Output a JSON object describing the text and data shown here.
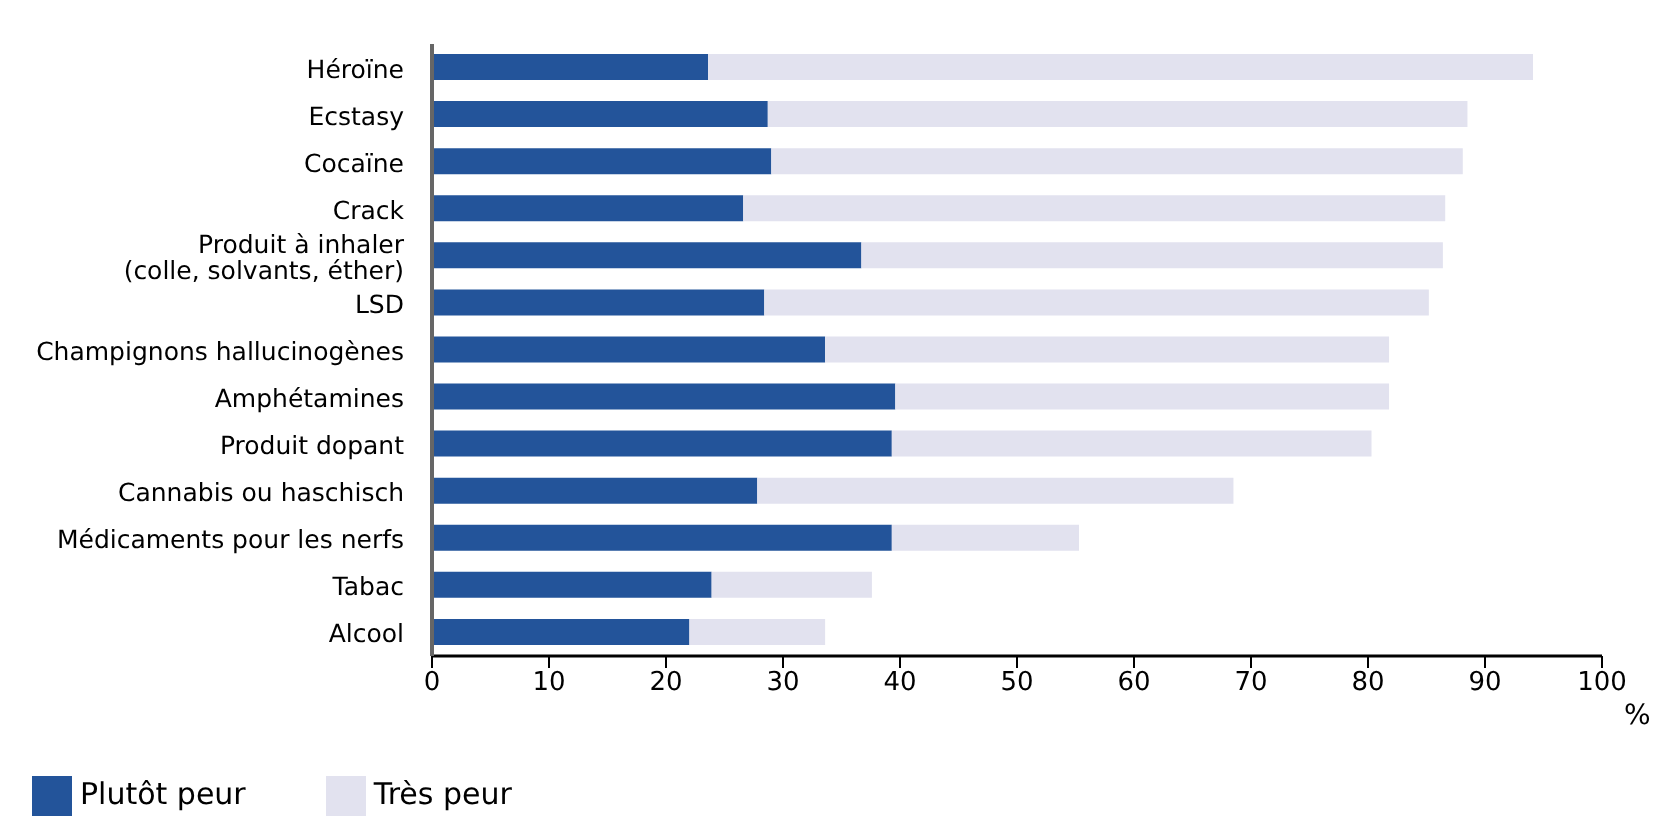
{
  "chart_data": {
    "type": "bar",
    "orientation": "horizontal",
    "stacked": true,
    "xlabel": "%",
    "categories": [
      "Héroïne",
      "Ecstasy",
      "Cocaïne",
      "Crack",
      "Produit à inhaler\n(colle, solvants, éther)",
      "LSD",
      "Champignons hallucinogènes",
      "Amphétamines",
      "Produit dopant",
      "Cannabis ou haschisch",
      "Médicaments pour les nerfs",
      "Tabac",
      "Alcool"
    ],
    "series": [
      {
        "name": "Plutôt peur",
        "color": "#23549a",
        "values": [
          23.6,
          28.7,
          29.0,
          26.6,
          36.7,
          28.4,
          33.6,
          39.6,
          39.3,
          27.8,
          39.3,
          23.9,
          22.0
        ]
      },
      {
        "name": "Très peur",
        "color": "#e2e2ef",
        "values": [
          70.5,
          59.8,
          59.1,
          60.0,
          49.7,
          56.8,
          48.2,
          42.2,
          41.0,
          40.7,
          16.0,
          13.7,
          11.6
        ]
      }
    ],
    "xlim": [
      0,
      100
    ],
    "xticks": [
      0,
      10,
      20,
      30,
      40,
      50,
      60,
      70,
      80,
      90,
      100
    ],
    "grid": false,
    "legend": "bottom left"
  }
}
